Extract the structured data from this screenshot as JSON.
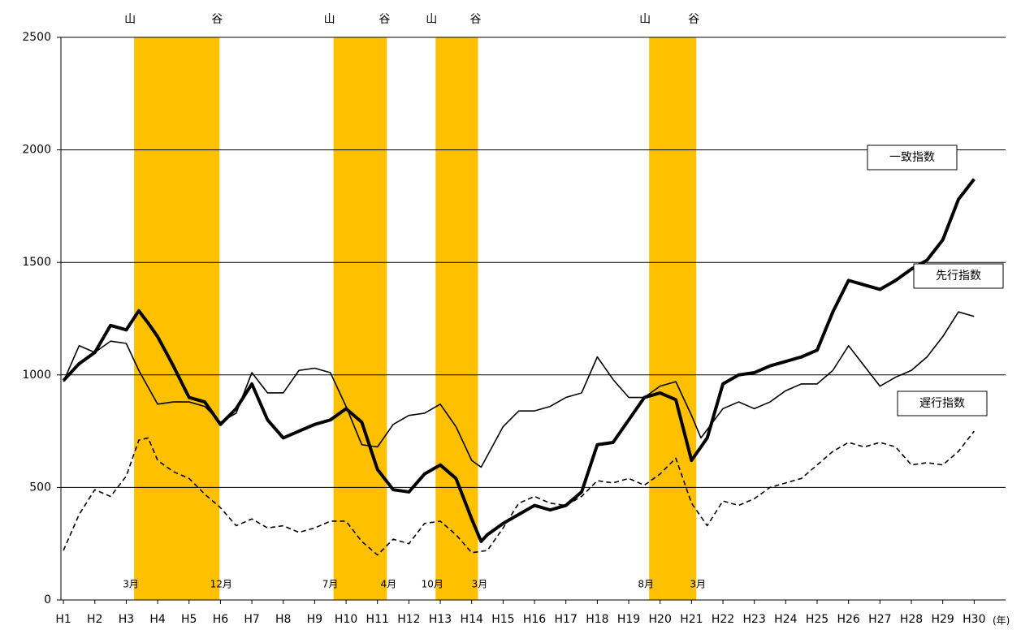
{
  "chart_data": {
    "type": "line",
    "xlim": [
      0.92,
      31
    ],
    "ylim": [
      0,
      2500
    ],
    "yticks": [
      0,
      500,
      1000,
      1500,
      2000,
      2500
    ],
    "grid": true,
    "xticks": [
      {
        "value": 1,
        "label": "H1"
      },
      {
        "value": 2,
        "label": "H2"
      },
      {
        "value": 3,
        "label": "H3"
      },
      {
        "value": 4,
        "label": "H4"
      },
      {
        "value": 5,
        "label": "H5"
      },
      {
        "value": 6,
        "label": "H6"
      },
      {
        "value": 7,
        "label": "H7"
      },
      {
        "value": 8,
        "label": "H8"
      },
      {
        "value": 9,
        "label": "H9"
      },
      {
        "value": 10,
        "label": "H10"
      },
      {
        "value": 11,
        "label": "H11"
      },
      {
        "value": 12,
        "label": "H12"
      },
      {
        "value": 13,
        "label": "H13"
      },
      {
        "value": 14,
        "label": "H14"
      },
      {
        "value": 15,
        "label": "H15"
      },
      {
        "value": 16,
        "label": "H16"
      },
      {
        "value": 17,
        "label": "H17"
      },
      {
        "value": 18,
        "label": "H18"
      },
      {
        "value": 19,
        "label": "H19"
      },
      {
        "value": 20,
        "label": "H20"
      },
      {
        "value": 21,
        "label": "H21"
      },
      {
        "value": 22,
        "label": "H22"
      },
      {
        "value": 23,
        "label": "H23"
      },
      {
        "value": 24,
        "label": "H24"
      },
      {
        "value": 25,
        "label": "H25"
      },
      {
        "value": 26,
        "label": "H26"
      },
      {
        "value": 27,
        "label": "H27"
      },
      {
        "value": 28,
        "label": "H28"
      },
      {
        "value": 29,
        "label": "H29"
      },
      {
        "value": 30,
        "label": "H30"
      }
    ],
    "x_unit": "(年)",
    "recessions": [
      {
        "start": 3.25,
        "end": 5.97,
        "peak_label": "山",
        "trough_label": "谷",
        "start_month": "3月",
        "end_month": "12月"
      },
      {
        "start": 9.6,
        "end": 11.3,
        "peak_label": "山",
        "trough_label": "谷",
        "start_month": "7月",
        "end_month": "4月"
      },
      {
        "start": 12.85,
        "end": 14.2,
        "peak_label": "山",
        "trough_label": "谷",
        "start_month": "10月",
        "end_month": "3月"
      },
      {
        "start": 19.65,
        "end": 21.15,
        "peak_label": "山",
        "trough_label": "谷",
        "start_month": "8月",
        "end_month": "3月"
      }
    ],
    "recession_color": "#ffc000",
    "series": [
      {
        "name": "一致指数",
        "color": "#000000",
        "width": 4,
        "dashed": false,
        "x": [
          1,
          1.5,
          2,
          2.5,
          3,
          3.4,
          3.7,
          4,
          4.5,
          5,
          5.5,
          6,
          6.5,
          7,
          7.5,
          8,
          8.5,
          9,
          9.5,
          10,
          10.5,
          11,
          11.5,
          12,
          12.5,
          13,
          13.5,
          14,
          14.3,
          14.5,
          15,
          15.5,
          16,
          16.5,
          17,
          17.5,
          18,
          18.5,
          19,
          19.5,
          20,
          20.5,
          21,
          21.5,
          22,
          22.5,
          23,
          23.5,
          24,
          24.5,
          25,
          25.5,
          26,
          26.5,
          27,
          27.5,
          28,
          28.5,
          29,
          29.5,
          30
        ],
        "values": [
          975,
          1050,
          1100,
          1220,
          1200,
          1285,
          1230,
          1170,
          1040,
          900,
          880,
          780,
          850,
          960,
          800,
          720,
          750,
          780,
          800,
          850,
          790,
          580,
          490,
          480,
          560,
          600,
          540,
          360,
          260,
          290,
          340,
          380,
          420,
          400,
          420,
          480,
          690,
          700,
          800,
          900,
          920,
          890,
          620,
          720,
          960,
          1000,
          1010,
          1040,
          1060,
          1080,
          1110,
          1280,
          1420,
          1400,
          1380,
          1420,
          1470,
          1510,
          1600,
          1780,
          1870
        ]
      },
      {
        "name": "先行指数",
        "color": "#000000",
        "width": 1.6,
        "dashed": false,
        "x": [
          1,
          1.5,
          2,
          2.5,
          3,
          3.4,
          4,
          4.5,
          5,
          5.5,
          6,
          6.5,
          7,
          7.5,
          8,
          8.5,
          9,
          9.5,
          10,
          10.5,
          11,
          11.5,
          12,
          12.5,
          13,
          13.5,
          14,
          14.3,
          15,
          15.5,
          16,
          16.5,
          17,
          17.5,
          18,
          18.5,
          19,
          19.5,
          20,
          20.5,
          21,
          21.3,
          22,
          22.5,
          23,
          23.5,
          24,
          24.5,
          25,
          25.5,
          26,
          26.5,
          27,
          27.5,
          28,
          28.5,
          29,
          29.5,
          30
        ],
        "values": [
          970,
          1130,
          1100,
          1150,
          1140,
          1020,
          870,
          880,
          880,
          860,
          790,
          830,
          1010,
          920,
          920,
          1020,
          1030,
          1010,
          860,
          690,
          680,
          780,
          820,
          830,
          870,
          770,
          620,
          590,
          770,
          840,
          840,
          860,
          900,
          920,
          1080,
          980,
          900,
          900,
          950,
          970,
          820,
          720,
          850,
          880,
          850,
          880,
          930,
          960,
          960,
          1020,
          1130,
          1040,
          950,
          990,
          1020,
          1080,
          1170,
          1280,
          1260
        ]
      },
      {
        "name": "遅行指数",
        "color": "#000000",
        "width": 1.6,
        "dashed": true,
        "x": [
          1,
          1.5,
          2,
          2.5,
          3,
          3.4,
          3.7,
          4,
          4.5,
          5,
          5.5,
          6,
          6.5,
          7,
          7.5,
          8,
          8.5,
          9,
          9.5,
          10,
          10.5,
          11,
          11.5,
          12,
          12.5,
          13,
          13.5,
          14,
          14.5,
          15,
          15.5,
          16,
          16.5,
          17,
          17.5,
          18,
          18.5,
          19,
          19.5,
          20,
          20.5,
          21,
          21.5,
          22,
          22.5,
          23,
          23.5,
          24,
          24.5,
          25,
          25.5,
          26,
          26.5,
          27,
          27.5,
          28,
          28.5,
          29,
          29.5,
          30
        ],
        "values": [
          220,
          380,
          490,
          460,
          550,
          710,
          720,
          620,
          570,
          540,
          470,
          410,
          330,
          360,
          320,
          330,
          300,
          320,
          350,
          350,
          260,
          200,
          270,
          250,
          340,
          350,
          290,
          210,
          220,
          320,
          430,
          460,
          430,
          420,
          460,
          530,
          520,
          540,
          510,
          560,
          630,
          430,
          330,
          440,
          420,
          450,
          500,
          520,
          540,
          600,
          660,
          700,
          680,
          700,
          680,
          600,
          610,
          600,
          660,
          750
        ]
      }
    ]
  }
}
